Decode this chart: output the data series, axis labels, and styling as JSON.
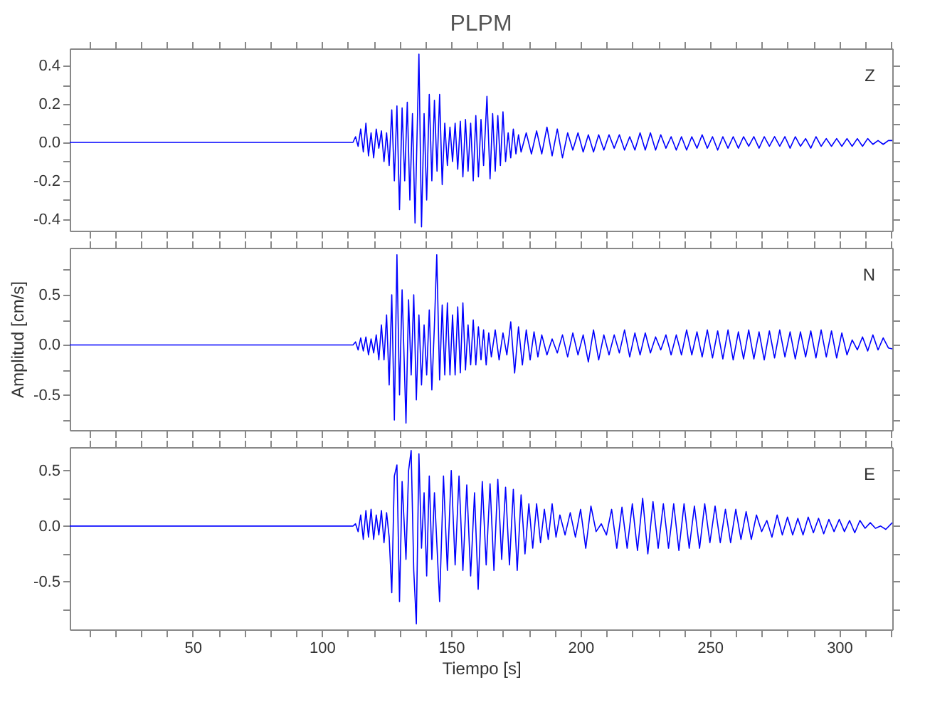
{
  "chart_data": [
    {
      "type": "line",
      "title": "PLPM",
      "annotations": [
        "Z"
      ],
      "tick_labels": "y",
      "grid": false,
      "marker": "none",
      "line_style": "solid",
      "xlim": [
        2.5,
        320.5
      ],
      "ylim": [
        -0.46,
        0.49
      ],
      "xticks": [
        {
          "value": 10,
          "label": null
        },
        {
          "value": 20,
          "label": null
        },
        {
          "value": 30,
          "label": null
        },
        {
          "value": 40,
          "label": null
        },
        {
          "value": 50,
          "label": null
        },
        {
          "value": 60,
          "label": null
        },
        {
          "value": 70,
          "label": null
        },
        {
          "value": 80,
          "label": null
        },
        {
          "value": 90,
          "label": null
        },
        {
          "value": 100,
          "label": null
        },
        {
          "value": 110,
          "label": null
        },
        {
          "value": 120,
          "label": null
        },
        {
          "value": 130,
          "label": null
        },
        {
          "value": 140,
          "label": null
        },
        {
          "value": 150,
          "label": null
        },
        {
          "value": 160,
          "label": null
        },
        {
          "value": 170,
          "label": null
        },
        {
          "value": 180,
          "label": null
        },
        {
          "value": 190,
          "label": null
        },
        {
          "value": 200,
          "label": null
        },
        {
          "value": 210,
          "label": null
        },
        {
          "value": 220,
          "label": null
        },
        {
          "value": 230,
          "label": null
        },
        {
          "value": 240,
          "label": null
        },
        {
          "value": 250,
          "label": null
        },
        {
          "value": 260,
          "label": null
        },
        {
          "value": 270,
          "label": null
        },
        {
          "value": 280,
          "label": null
        },
        {
          "value": 290,
          "label": null
        },
        {
          "value": 300,
          "label": null
        },
        {
          "value": 310,
          "label": null
        },
        {
          "value": 320,
          "label": null
        }
      ],
      "yticks": [
        {
          "value": -0.4,
          "label": "-0.4"
        },
        {
          "value": -0.3,
          "label": null
        },
        {
          "value": -0.2,
          "label": "-0.2"
        },
        {
          "value": -0.1,
          "label": null
        },
        {
          "value": 0,
          "label": "0.0"
        },
        {
          "value": 0.1,
          "label": null
        },
        {
          "value": 0.2,
          "label": "0.2"
        },
        {
          "value": 0.3,
          "label": null
        },
        {
          "value": 0.4,
          "label": "0.4"
        }
      ],
      "series": [
        {
          "color": "#0000ff",
          "x": [
            2.5,
            112,
            113,
            114,
            115,
            116,
            117,
            118,
            119,
            120,
            121,
            122,
            123,
            124,
            125,
            126,
            127,
            128,
            129,
            130,
            131,
            132,
            133,
            134,
            135,
            136,
            137.5,
            138.5,
            139.5,
            140.5,
            141.5,
            142.5,
            143.5,
            144.5,
            145.5,
            146.5,
            147.5,
            148.5,
            149.5,
            150.5,
            151.5,
            152.5,
            153.5,
            154.5,
            155.5,
            156.5,
            157.5,
            158.5,
            159.5,
            160.5,
            161.5,
            162.5,
            163.8,
            165,
            166,
            167,
            168,
            169,
            170,
            171,
            172,
            173,
            174,
            175,
            176,
            177,
            179,
            181,
            183,
            185,
            187,
            189,
            191,
            193,
            195,
            197,
            199,
            201,
            203,
            205,
            207,
            209,
            211,
            213,
            215,
            217,
            219,
            221,
            223,
            225,
            227,
            229,
            231,
            233,
            235,
            237,
            239,
            241,
            243,
            245,
            247,
            249,
            251,
            253,
            255,
            257,
            259,
            261,
            263,
            265,
            267,
            269,
            271,
            273,
            275,
            277,
            279,
            281,
            283,
            285,
            287,
            289,
            291,
            293,
            295,
            297,
            299,
            301,
            303,
            305,
            307,
            309,
            311,
            313,
            315,
            317,
            319,
            320.5
          ],
          "values": [
            0,
            0,
            0.03,
            -0.02,
            0.07,
            -0.05,
            0.1,
            -0.07,
            0.05,
            -0.08,
            0.07,
            -0.03,
            0.06,
            -0.1,
            0.05,
            -0.12,
            0.17,
            -0.2,
            0.19,
            -0.35,
            0.18,
            -0.2,
            0.21,
            -0.3,
            0.15,
            -0.42,
            0.46,
            -0.44,
            0.15,
            -0.3,
            0.25,
            -0.2,
            0.22,
            -0.15,
            0.25,
            -0.22,
            0.1,
            -0.12,
            0.08,
            -0.1,
            0.1,
            -0.14,
            0.11,
            -0.18,
            0.12,
            -0.15,
            0.1,
            -0.2,
            0.14,
            -0.18,
            0.12,
            -0.12,
            0.24,
            -0.19,
            0.15,
            -0.15,
            0.14,
            -0.12,
            0.16,
            -0.1,
            0.05,
            -0.08,
            0.07,
            -0.06,
            0.04,
            -0.05,
            0.05,
            -0.06,
            0.06,
            -0.06,
            0.08,
            -0.07,
            0.07,
            -0.08,
            0.05,
            -0.04,
            0.05,
            -0.05,
            0.04,
            -0.05,
            0.04,
            -0.04,
            0.04,
            -0.03,
            0.04,
            -0.04,
            0.03,
            -0.04,
            0.05,
            -0.04,
            0.05,
            -0.04,
            0.04,
            -0.03,
            0.03,
            -0.04,
            0.03,
            -0.04,
            0.03,
            -0.03,
            0.04,
            -0.03,
            0.03,
            -0.04,
            0.03,
            -0.03,
            0.03,
            -0.03,
            0.03,
            -0.02,
            0.03,
            -0.03,
            0.03,
            -0.02,
            0.03,
            -0.02,
            0.03,
            -0.03,
            0.03,
            -0.02,
            0.02,
            -0.03,
            0.03,
            -0.02,
            0.02,
            -0.02,
            0.02,
            -0.02,
            0.02,
            -0.02,
            0.02,
            -0.02,
            0.02,
            -0.01,
            0.01,
            -0.01,
            0.01,
            0.01
          ]
        }
      ]
    },
    {
      "type": "line",
      "ylabel": "Amplitud [cm/s]",
      "annotations": [
        "N"
      ],
      "tick_labels": "y",
      "grid": false,
      "marker": "none",
      "line_style": "solid",
      "xlim": [
        2.5,
        320.5
      ],
      "ylim": [
        -0.85,
        0.97
      ],
      "xticks": [
        {
          "value": 10,
          "label": null
        },
        {
          "value": 20,
          "label": null
        },
        {
          "value": 30,
          "label": null
        },
        {
          "value": 40,
          "label": null
        },
        {
          "value": 50,
          "label": null
        },
        {
          "value": 60,
          "label": null
        },
        {
          "value": 70,
          "label": null
        },
        {
          "value": 80,
          "label": null
        },
        {
          "value": 90,
          "label": null
        },
        {
          "value": 100,
          "label": null
        },
        {
          "value": 110,
          "label": null
        },
        {
          "value": 120,
          "label": null
        },
        {
          "value": 130,
          "label": null
        },
        {
          "value": 140,
          "label": null
        },
        {
          "value": 150,
          "label": null
        },
        {
          "value": 160,
          "label": null
        },
        {
          "value": 170,
          "label": null
        },
        {
          "value": 180,
          "label": null
        },
        {
          "value": 190,
          "label": null
        },
        {
          "value": 200,
          "label": null
        },
        {
          "value": 210,
          "label": null
        },
        {
          "value": 220,
          "label": null
        },
        {
          "value": 230,
          "label": null
        },
        {
          "value": 240,
          "label": null
        },
        {
          "value": 250,
          "label": null
        },
        {
          "value": 260,
          "label": null
        },
        {
          "value": 270,
          "label": null
        },
        {
          "value": 280,
          "label": null
        },
        {
          "value": 290,
          "label": null
        },
        {
          "value": 300,
          "label": null
        },
        {
          "value": 310,
          "label": null
        },
        {
          "value": 320,
          "label": null
        }
      ],
      "yticks": [
        {
          "value": -0.75,
          "label": null
        },
        {
          "value": -0.5,
          "label": "-0.5"
        },
        {
          "value": -0.25,
          "label": null
        },
        {
          "value": 0,
          "label": "0.0"
        },
        {
          "value": 0.25,
          "label": null
        },
        {
          "value": 0.5,
          "label": "0.5"
        },
        {
          "value": 0.75,
          "label": null
        }
      ],
      "series": [
        {
          "color": "#0000ff",
          "x": [
            2.5,
            112,
            113,
            114,
            115,
            116,
            117,
            118,
            119,
            120,
            121,
            122,
            123,
            124,
            125,
            126,
            127,
            128,
            129,
            130,
            131,
            132.5,
            133.5,
            134.5,
            135.5,
            136.5,
            137.5,
            138.5,
            139.5,
            140.5,
            141.5,
            142.5,
            143.5,
            144.4,
            145.5,
            146.5,
            147.5,
            148.5,
            149.5,
            150.5,
            151.5,
            152.5,
            153.5,
            154.5,
            155.5,
            156.5,
            157.5,
            158.5,
            159.5,
            160.5,
            161.5,
            162.5,
            163.5,
            164.5,
            165.5,
            167,
            168.5,
            170,
            171.5,
            173,
            174.5,
            176,
            177.5,
            179,
            180.5,
            182,
            183.5,
            185,
            187,
            189,
            191,
            193,
            195,
            197,
            199,
            201,
            203,
            205,
            207,
            209,
            211,
            213,
            215,
            217,
            219,
            221,
            223,
            225,
            227,
            229,
            231,
            233,
            235,
            237,
            239,
            241,
            243,
            245,
            247,
            249,
            251,
            253,
            255,
            257,
            259,
            261,
            263,
            265,
            267,
            269,
            271,
            273,
            275,
            277,
            279,
            281,
            283,
            285,
            287,
            289,
            291,
            293,
            295,
            297,
            299,
            301,
            303,
            305,
            307,
            309,
            311,
            313,
            315,
            317,
            319,
            320.5
          ],
          "values": [
            0,
            0,
            0.03,
            -0.05,
            0.07,
            -0.06,
            0.08,
            -0.1,
            0.06,
            -0.08,
            0.1,
            -0.15,
            0.2,
            -0.15,
            0.3,
            -0.4,
            0.5,
            -0.75,
            0.9,
            -0.5,
            0.55,
            -0.78,
            0.45,
            -0.3,
            0.5,
            -0.55,
            0.3,
            -0.4,
            0.2,
            -0.3,
            0.35,
            -0.45,
            0.2,
            0.9,
            -0.35,
            0.4,
            -0.3,
            0.42,
            -0.3,
            0.3,
            -0.3,
            0.38,
            -0.28,
            0.42,
            -0.25,
            0.2,
            -0.2,
            0.25,
            -0.2,
            0.18,
            -0.15,
            0.15,
            -0.2,
            0.12,
            -0.12,
            0.15,
            -0.15,
            0.12,
            -0.1,
            0.23,
            -0.28,
            0.18,
            -0.2,
            0.15,
            -0.15,
            0.13,
            -0.12,
            0.1,
            -0.1,
            0.06,
            -0.08,
            0.1,
            -0.12,
            0.12,
            -0.1,
            0.1,
            -0.17,
            0.15,
            -0.15,
            0.1,
            -0.1,
            0.1,
            -0.08,
            0.15,
            -0.12,
            0.12,
            -0.1,
            0.12,
            -0.08,
            0.08,
            -0.05,
            0.1,
            -0.1,
            0.1,
            -0.1,
            0.15,
            -0.1,
            0.13,
            -0.12,
            0.15,
            -0.13,
            0.14,
            -0.14,
            0.15,
            -0.15,
            0.13,
            -0.14,
            0.15,
            -0.14,
            0.13,
            -0.15,
            0.14,
            -0.13,
            0.15,
            -0.12,
            0.13,
            -0.14,
            0.13,
            -0.12,
            0.14,
            -0.13,
            0.15,
            -0.12,
            0.14,
            -0.13,
            0.12,
            -0.1,
            0.05,
            -0.05,
            0.08,
            -0.06,
            0.1,
            -0.05,
            0.07,
            -0.03,
            -0.04
          ]
        }
      ]
    },
    {
      "type": "line",
      "xlabel": "Tiempo [s]",
      "annotations": [
        "E"
      ],
      "grid": false,
      "marker": "none",
      "line_style": "solid",
      "xlim": [
        2.5,
        320.5
      ],
      "ylim": [
        -0.93,
        0.71
      ],
      "xticks": [
        {
          "value": 10,
          "label": null
        },
        {
          "value": 20,
          "label": null
        },
        {
          "value": 30,
          "label": null
        },
        {
          "value": 40,
          "label": null
        },
        {
          "value": 50,
          "label": "50"
        },
        {
          "value": 60,
          "label": null
        },
        {
          "value": 70,
          "label": null
        },
        {
          "value": 80,
          "label": null
        },
        {
          "value": 90,
          "label": null
        },
        {
          "value": 100,
          "label": "100"
        },
        {
          "value": 110,
          "label": null
        },
        {
          "value": 120,
          "label": null
        },
        {
          "value": 130,
          "label": null
        },
        {
          "value": 140,
          "label": null
        },
        {
          "value": 150,
          "label": "150"
        },
        {
          "value": 160,
          "label": null
        },
        {
          "value": 170,
          "label": null
        },
        {
          "value": 180,
          "label": null
        },
        {
          "value": 190,
          "label": null
        },
        {
          "value": 200,
          "label": "200"
        },
        {
          "value": 210,
          "label": null
        },
        {
          "value": 220,
          "label": null
        },
        {
          "value": 230,
          "label": null
        },
        {
          "value": 240,
          "label": null
        },
        {
          "value": 250,
          "label": "250"
        },
        {
          "value": 260,
          "label": null
        },
        {
          "value": 270,
          "label": null
        },
        {
          "value": 280,
          "label": null
        },
        {
          "value": 290,
          "label": null
        },
        {
          "value": 300,
          "label": "300"
        },
        {
          "value": 310,
          "label": null
        },
        {
          "value": 320,
          "label": null
        }
      ],
      "yticks": [
        {
          "value": -0.75,
          "label": null
        },
        {
          "value": -0.5,
          "label": "-0.5"
        },
        {
          "value": -0.25,
          "label": null
        },
        {
          "value": 0,
          "label": "0.0"
        },
        {
          "value": 0.25,
          "label": null
        },
        {
          "value": 0.5,
          "label": "0.5"
        }
      ],
      "series": [
        {
          "color": "#0000ff",
          "x": [
            2.5,
            112,
            113,
            114,
            115,
            116,
            117,
            118,
            119,
            120,
            121,
            122,
            123,
            124,
            125,
            126,
            127,
            128,
            129,
            130,
            131,
            132.5,
            133.5,
            134.5,
            135.5,
            136.5,
            137.5,
            138.5,
            139.5,
            140.5,
            141.5,
            142.5,
            143.5,
            145.5,
            147,
            148.5,
            150,
            151.5,
            153,
            154.5,
            156,
            157.5,
            159,
            160.4,
            162,
            163.5,
            165,
            166.5,
            168,
            169.5,
            171,
            172.5,
            174,
            175.5,
            177,
            178.5,
            180,
            181.5,
            183,
            184.5,
            186,
            187.5,
            189,
            190.5,
            192,
            194,
            196,
            198,
            200,
            202,
            204,
            206,
            208,
            210,
            212,
            214,
            216,
            218,
            220,
            222,
            224,
            226,
            228,
            230,
            232,
            234,
            236,
            238,
            240,
            242,
            244,
            246,
            248,
            250,
            252,
            254,
            256,
            258,
            260,
            262,
            264,
            266,
            268,
            270,
            272,
            274,
            276,
            278,
            280,
            282,
            284,
            286,
            288,
            290,
            292,
            294,
            296,
            298,
            300,
            302,
            304,
            306,
            308,
            310,
            312,
            314,
            316,
            318,
            320.5
          ],
          "values": [
            0,
            0,
            0.02,
            -0.05,
            0.1,
            -0.12,
            0.14,
            -0.1,
            0.15,
            -0.12,
            0.1,
            -0.08,
            0.14,
            -0.15,
            0.12,
            -0.1,
            -0.6,
            0.45,
            0.55,
            -0.68,
            0.4,
            -0.3,
            0.5,
            0.68,
            -0.4,
            -0.88,
            0.65,
            -0.2,
            0.3,
            -0.45,
            0.45,
            -0.3,
            0.3,
            -0.68,
            0.45,
            -0.4,
            0.5,
            -0.35,
            0.45,
            -0.4,
            0.37,
            -0.45,
            0.3,
            -0.57,
            0.4,
            -0.35,
            0.38,
            -0.4,
            0.42,
            -0.3,
            0.35,
            -0.35,
            0.33,
            -0.4,
            0.28,
            -0.25,
            0.2,
            -0.2,
            0.2,
            -0.15,
            0.15,
            -0.12,
            0.2,
            -0.1,
            0.1,
            -0.08,
            0.12,
            -0.1,
            0.15,
            -0.2,
            0.18,
            -0.05,
            0.02,
            -0.08,
            0.15,
            -0.2,
            0.17,
            -0.2,
            0.2,
            -0.22,
            0.25,
            -0.25,
            0.22,
            -0.2,
            0.2,
            -0.2,
            0.2,
            -0.22,
            0.2,
            -0.2,
            0.18,
            -0.2,
            0.2,
            -0.15,
            0.18,
            -0.15,
            0.15,
            -0.15,
            0.15,
            -0.12,
            0.13,
            -0.12,
            0.1,
            -0.05,
            0.05,
            -0.1,
            0.1,
            -0.08,
            0.08,
            -0.08,
            0.07,
            -0.08,
            0.08,
            -0.06,
            0.07,
            -0.07,
            0.06,
            -0.05,
            0.06,
            -0.05,
            0.05,
            -0.06,
            0.05,
            -0.02,
            0.03,
            -0.02,
            0,
            -0.03,
            0.03
          ]
        }
      ]
    }
  ]
}
